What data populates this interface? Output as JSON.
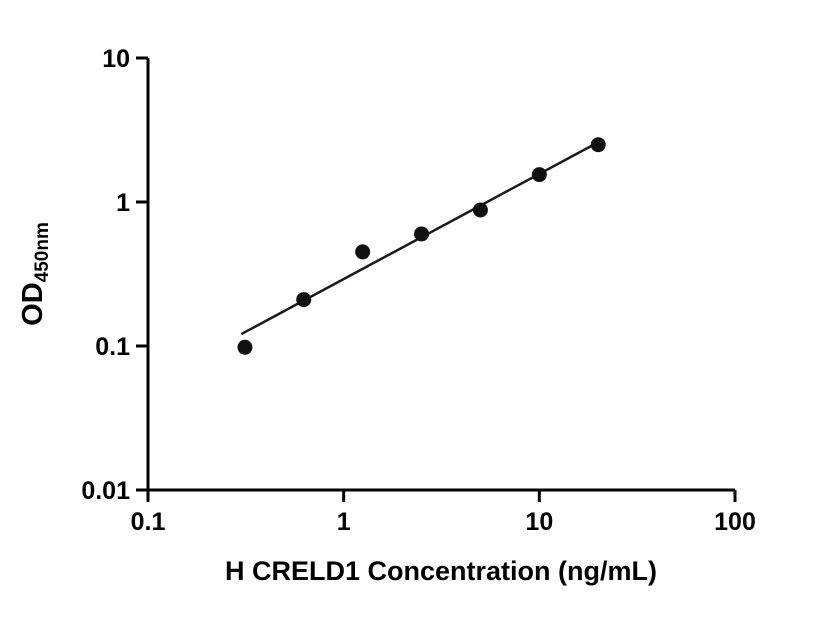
{
  "chart_data": {
    "type": "scatter",
    "title": "",
    "xlabel": "H CRELD1 Concentration (ng/mL)",
    "ylabel_main": "OD",
    "ylabel_sub": "450nm",
    "x_scale": "log",
    "y_scale": "log",
    "xlim": [
      0.1,
      100
    ],
    "ylim": [
      0.01,
      10
    ],
    "grid": false,
    "legend": false,
    "x_ticks": [
      {
        "v": 0.1,
        "label": "0.1"
      },
      {
        "v": 1,
        "label": "1"
      },
      {
        "v": 10,
        "label": "10"
      },
      {
        "v": 100,
        "label": "100"
      }
    ],
    "y_ticks": [
      {
        "v": 0.01,
        "label": "0.01"
      },
      {
        "v": 0.1,
        "label": "0.1"
      },
      {
        "v": 1,
        "label": "1"
      },
      {
        "v": 10,
        "label": "10"
      }
    ],
    "points": [
      {
        "x": 0.313,
        "y": 0.098
      },
      {
        "x": 0.625,
        "y": 0.21
      },
      {
        "x": 1.25,
        "y": 0.45
      },
      {
        "x": 2.5,
        "y": 0.6
      },
      {
        "x": 5,
        "y": 0.88
      },
      {
        "x": 10,
        "y": 1.55
      },
      {
        "x": 20,
        "y": 2.5
      }
    ],
    "fit_line": {
      "x1": 0.3,
      "y1": 0.121,
      "x2": 20,
      "y2": 2.6
    },
    "colors": {
      "point": "#111111",
      "line": "#1a1a1a",
      "axis": "#000000",
      "background": "#ffffff"
    }
  }
}
